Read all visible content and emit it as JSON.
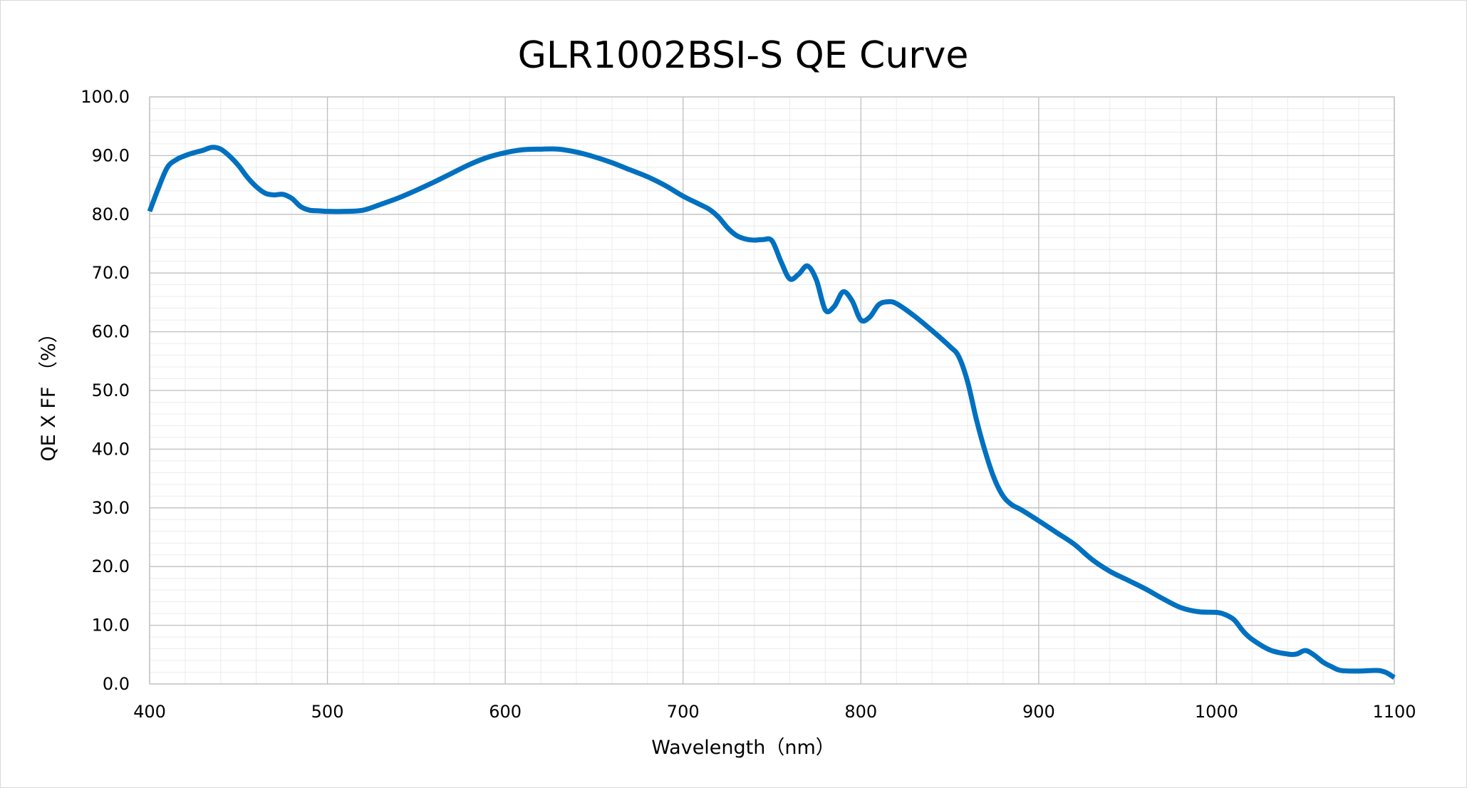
{
  "chart_data": {
    "type": "line",
    "title": "GLR1002BSI-S QE Curve",
    "xlabel": "Wavelength（nm）",
    "ylabel": "QE X FF （%）",
    "xlim": [
      400,
      1100
    ],
    "ylim": [
      0,
      100
    ],
    "x_ticks": [
      "400",
      "500",
      "600",
      "700",
      "800",
      "900",
      "1000",
      "1100"
    ],
    "y_ticks": [
      "0.0",
      "10.0",
      "20.0",
      "30.0",
      "40.0",
      "50.0",
      "60.0",
      "70.0",
      "80.0",
      "90.0",
      "100.0"
    ],
    "grid": true,
    "minor_grid": true,
    "legend": "none",
    "line_color": "#0070C0",
    "series": [
      {
        "x": [
          400,
          405,
          410,
          415,
          420,
          425,
          430,
          435,
          440,
          445,
          450,
          455,
          460,
          465,
          470,
          475,
          480,
          485,
          490,
          495,
          500,
          510,
          520,
          530,
          540,
          550,
          560,
          570,
          580,
          590,
          600,
          610,
          620,
          630,
          640,
          650,
          660,
          670,
          680,
          690,
          700,
          710,
          715,
          720,
          725,
          730,
          735,
          740,
          745,
          750,
          755,
          760,
          765,
          770,
          775,
          780,
          785,
          790,
          795,
          800,
          805,
          810,
          815,
          820,
          830,
          840,
          850,
          855,
          860,
          865,
          870,
          875,
          880,
          885,
          890,
          900,
          910,
          920,
          930,
          940,
          950,
          960,
          970,
          980,
          990,
          1000,
          1005,
          1010,
          1015,
          1020,
          1030,
          1040,
          1045,
          1050,
          1055,
          1060,
          1065,
          1070,
          1080,
          1090,
          1095,
          1100
        ],
        "y": [
          80.5,
          84.5,
          88.0,
          89.3,
          90.0,
          90.5,
          90.9,
          91.4,
          91.1,
          89.9,
          88.3,
          86.3,
          84.7,
          83.6,
          83.3,
          83.4,
          82.7,
          81.3,
          80.7,
          80.6,
          80.5,
          80.5,
          80.7,
          81.7,
          82.8,
          84.1,
          85.5,
          87.0,
          88.5,
          89.7,
          90.5,
          91.0,
          91.1,
          91.1,
          90.6,
          89.8,
          88.8,
          87.6,
          86.4,
          84.9,
          83.1,
          81.6,
          80.8,
          79.5,
          77.7,
          76.4,
          75.8,
          75.6,
          75.7,
          75.5,
          72.0,
          69.0,
          69.8,
          71.2,
          68.8,
          63.7,
          64.3,
          66.8,
          65.3,
          62.0,
          62.5,
          64.6,
          65.1,
          64.8,
          62.7,
          60.2,
          57.5,
          55.8,
          51.5,
          45.0,
          39.5,
          35.0,
          32.0,
          30.5,
          29.7,
          27.8,
          25.8,
          23.8,
          21.2,
          19.2,
          17.7,
          16.2,
          14.5,
          13.0,
          12.3,
          12.2,
          11.8,
          10.9,
          9.0,
          7.6,
          5.8,
          5.1,
          5.1,
          5.7,
          4.9,
          3.7,
          2.9,
          2.3,
          2.2,
          2.3,
          2.0,
          1.1
        ]
      }
    ]
  }
}
